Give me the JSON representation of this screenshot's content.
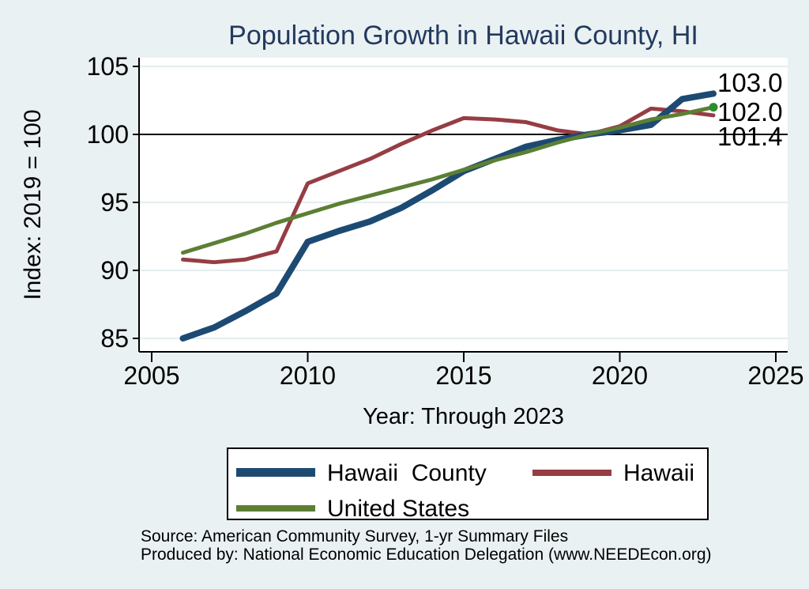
{
  "title": "Population Growth in Hawaii County, HI",
  "chart_data": {
    "type": "line",
    "title": "Population Growth in Hawaii County, HI",
    "xlabel": "Year: Through 2023",
    "ylabel": "Index: 2019 = 100",
    "x_ticks": [
      2005,
      2010,
      2015,
      2020,
      2025
    ],
    "y_ticks": [
      85,
      90,
      95,
      100,
      105
    ],
    "xlim": [
      2004.6,
      2025.4
    ],
    "ylim": [
      84,
      105.6
    ],
    "reference_line_y": 100,
    "grid": true,
    "legend_position": "bottom",
    "x": [
      2006,
      2007,
      2008,
      2009,
      2010,
      2011,
      2012,
      2013,
      2014,
      2015,
      2016,
      2017,
      2018,
      2019,
      2020,
      2021,
      2022,
      2023
    ],
    "series": [
      {
        "name": "Hawaii  County",
        "color": "#1d4a73",
        "line_width": 8,
        "values": [
          85.0,
          85.8,
          87.0,
          88.3,
          92.1,
          92.9,
          93.6,
          94.6,
          95.9,
          97.3,
          98.2,
          99.1,
          99.6,
          100.0,
          100.3,
          100.7,
          102.6,
          103.0
        ]
      },
      {
        "name": "Hawaii",
        "color": "#963d44",
        "line_width": 5,
        "values": [
          90.8,
          90.6,
          90.8,
          91.4,
          96.4,
          97.3,
          98.2,
          99.3,
          100.3,
          101.2,
          101.1,
          100.9,
          100.3,
          100.0,
          100.6,
          101.9,
          101.7,
          101.4
        ]
      },
      {
        "name": "United States",
        "color": "#5c7f34",
        "line_width": 5,
        "end_marker_color": "#2e8b2e",
        "values": [
          91.3,
          92.0,
          92.7,
          93.5,
          94.2,
          94.9,
          95.5,
          96.1,
          96.7,
          97.4,
          98.1,
          98.7,
          99.4,
          100.0,
          100.5,
          101.1,
          101.5,
          102.0
        ]
      }
    ],
    "end_labels": [
      "103.0",
      "102.0",
      "101.4"
    ]
  },
  "legend": {
    "items": [
      {
        "label": "Hawaii  County",
        "color": "#1d4a73"
      },
      {
        "label": "Hawaii",
        "color": "#963d44"
      },
      {
        "label": "United States",
        "color": "#5c7f34"
      }
    ]
  },
  "footer": {
    "line1": "Source: American Community Survey, 1-yr Summary Files",
    "line2": "Produced by: National Economic Education Delegation (www.NEEDEcon.org)"
  },
  "colors": {
    "background": "#eaf1f3",
    "plot_background": "#ffffff",
    "title": "#233a5e",
    "grid": "#e4edef",
    "axis": "#000000"
  }
}
